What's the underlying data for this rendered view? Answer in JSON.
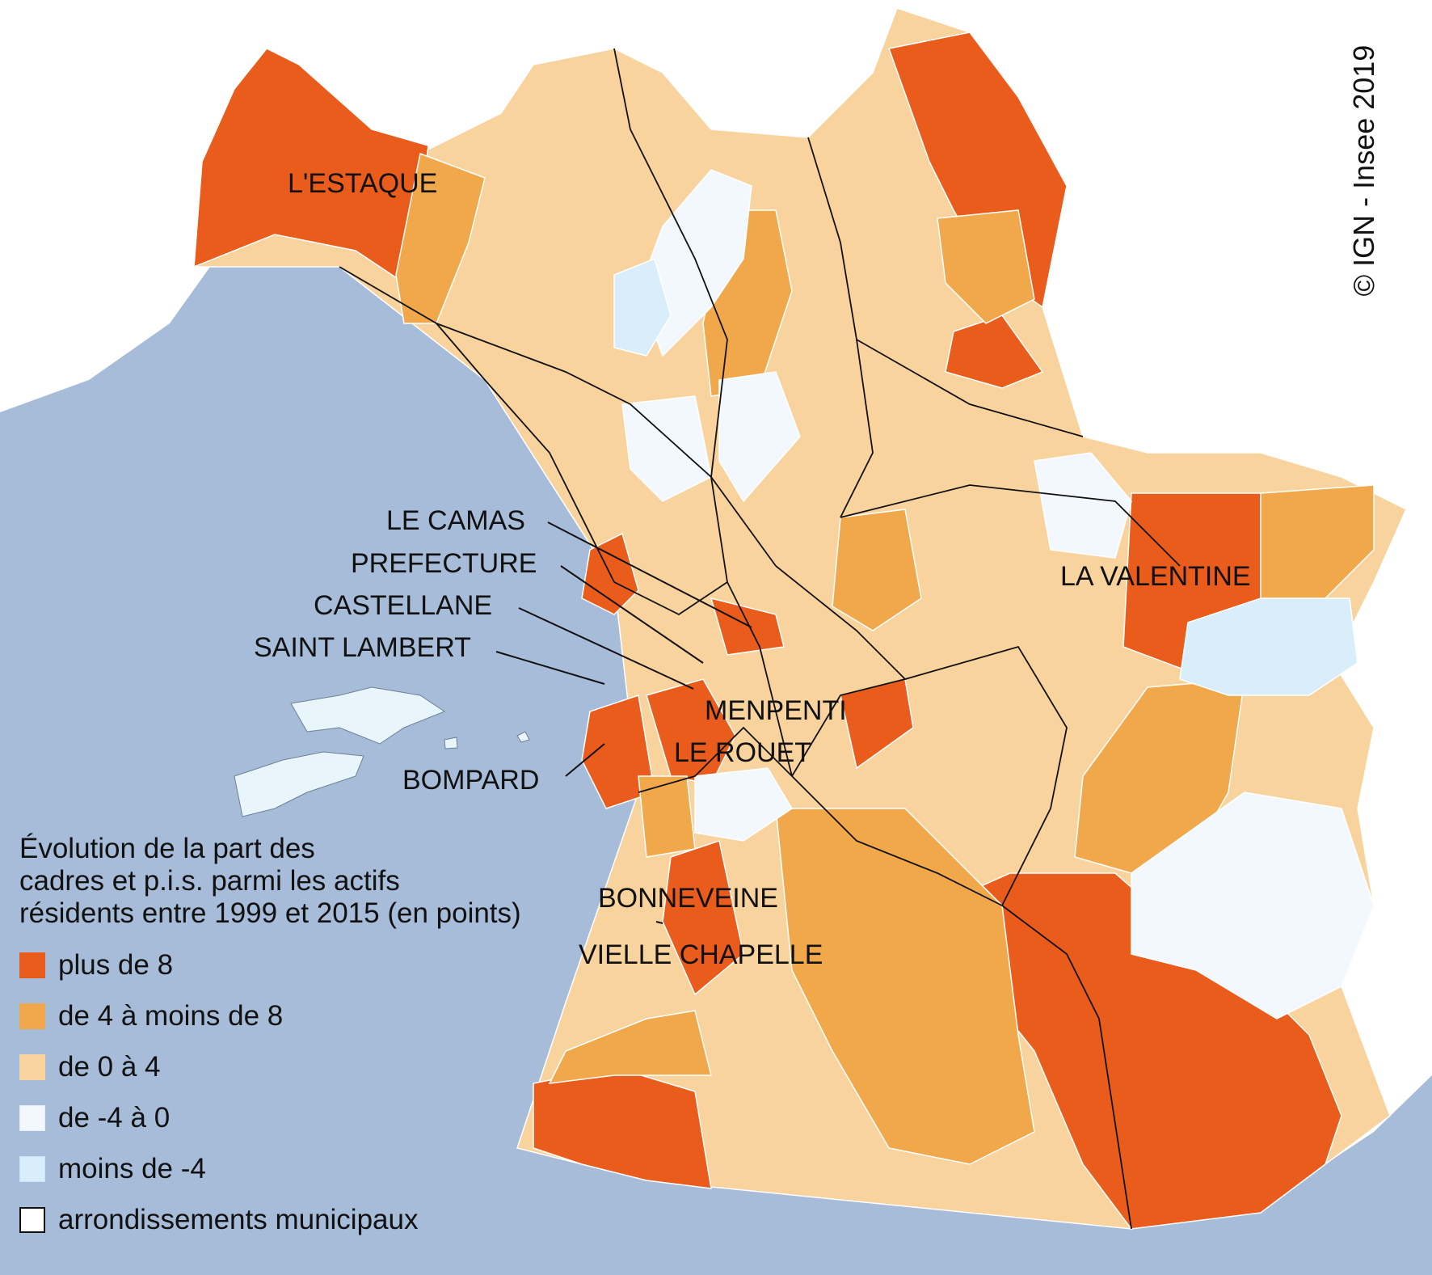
{
  "copyright": "© IGN - Insee 2019",
  "legend": {
    "title": "Évolution de la part des\ncadres et p.i.s. parmi les actifs\nrésidents entre 1999 et 2015 (en points)",
    "classes": [
      {
        "label": "plus de 8",
        "color": "#e95c1b"
      },
      {
        "label": "de 4 à moins de 8",
        "color": "#f0a84b"
      },
      {
        "label": "de 0 à 4",
        "color": "#f8d39d"
      },
      {
        "label": "de -4 à 0",
        "color": "#f2f8fd"
      },
      {
        "label": "moins de -4",
        "color": "#d9eefa"
      }
    ],
    "boundary_label": "arrondissements municipaux"
  },
  "colors": {
    "sea": "#a6bcd8",
    "land_background": "#ffffff",
    "boundary": "#111111"
  },
  "places": [
    {
      "name": "L'ESTAQUE"
    },
    {
      "name": "LE CAMAS"
    },
    {
      "name": "PREFECTURE"
    },
    {
      "name": "CASTELLANE"
    },
    {
      "name": "SAINT LAMBERT"
    },
    {
      "name": "MENPENTI"
    },
    {
      "name": "LE ROUET"
    },
    {
      "name": "BOMPARD"
    },
    {
      "name": "LA VALENTINE"
    },
    {
      "name": "BONNEVEINE"
    },
    {
      "name": "VIELLE CHAPELLE"
    }
  ]
}
